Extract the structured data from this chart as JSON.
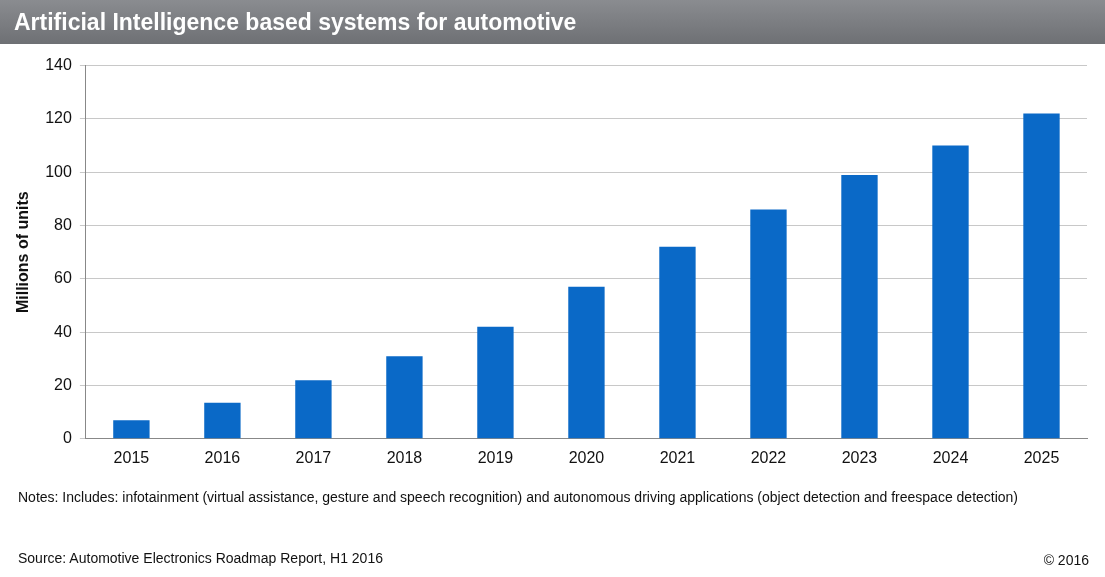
{
  "chart_data": {
    "type": "bar",
    "title": "Artificial Intelligence based systems for automotive",
    "ylabel": "Millions of units",
    "categories": [
      "2015",
      "2016",
      "2017",
      "2018",
      "2019",
      "2020",
      "2021",
      "2022",
      "2023",
      "2024",
      "2025"
    ],
    "values": [
      7,
      13.5,
      22,
      31,
      42,
      57,
      72,
      86,
      99,
      110,
      122
    ],
    "color": "#0a69c7",
    "ylim": [
      0,
      140
    ],
    "yticks": [
      0,
      20,
      40,
      60,
      80,
      100,
      120,
      140
    ],
    "grid": "y",
    "legend": false,
    "annotations": [
      "Notes: Includes: infotainment (virtual assistance, gesture and speech recognition) and autonomous driving applications (object detection and freespace detection)",
      "Source: Automotive Electronics Roadmap Report, H1 2016",
      "© 2016"
    ]
  }
}
